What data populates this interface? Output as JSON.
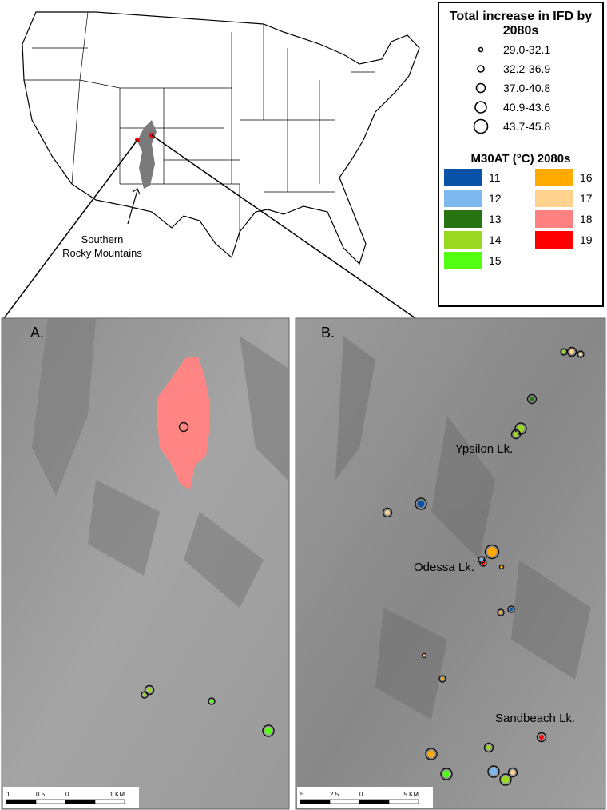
{
  "inset_map": {
    "label": "Southern Rocky Mountains"
  },
  "legend": {
    "size_title": "Total increase in IFD by 2080s",
    "size_classes": [
      "29.0-32.1",
      "32.2-36.9",
      "37.0-40.8",
      "40.9-43.6",
      "43.7-45.8"
    ],
    "color_title": "M30AT (°C) 2080s",
    "color_classes": [
      {
        "label": "11",
        "color": "#0a52a8"
      },
      {
        "label": "12",
        "color": "#7fb7ef"
      },
      {
        "label": "13",
        "color": "#287412"
      },
      {
        "label": "14",
        "color": "#9bd822"
      },
      {
        "label": "15",
        "color": "#55ff14"
      },
      {
        "label": "16",
        "color": "#ffaa00"
      },
      {
        "label": "17",
        "color": "#ffd38e"
      },
      {
        "label": "18",
        "color": "#ff8080"
      },
      {
        "label": "19",
        "color": "#ff0000"
      }
    ]
  },
  "panels": [
    {
      "label": "A.",
      "scale_labels": [
        "1",
        "0.5",
        "0",
        "1 KM"
      ]
    },
    {
      "label": "B.",
      "scale_labels": [
        "5",
        "2.5",
        "0",
        "5 KM"
      ],
      "places": [
        "Ypsilon Lk.",
        "Odessa Lk.",
        "Sandbeach Lk."
      ]
    }
  ]
}
